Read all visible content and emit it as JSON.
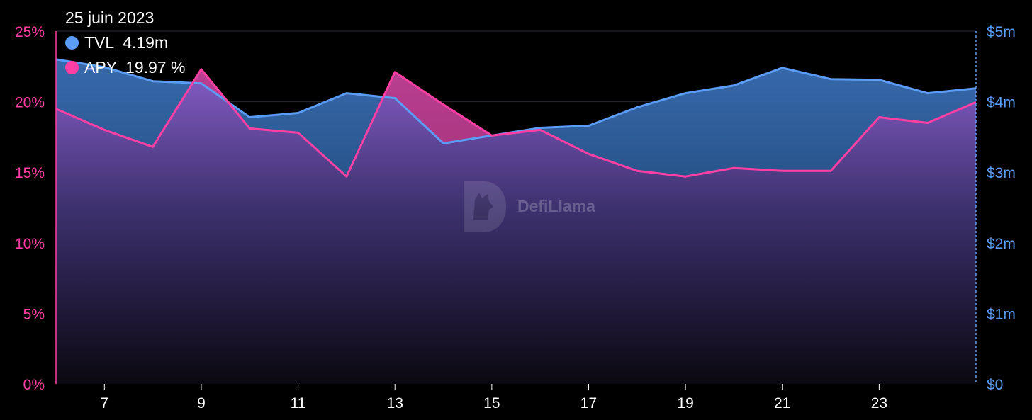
{
  "tooltip": {
    "date": "25 juin 2023",
    "tvl_label": "TVL",
    "tvl_value": "4.19m",
    "apy_label": "APY",
    "apy_value": "19.97 %"
  },
  "watermark": "DefiLlama",
  "colors": {
    "tvl": "#5b9cf6",
    "apy": "#ff3fa4",
    "background": "#000000",
    "grid": "#2a2a38"
  },
  "chart_data": {
    "type": "area",
    "x": [
      6,
      7,
      8,
      9,
      10,
      11,
      12,
      13,
      14,
      15,
      16,
      17,
      18,
      19,
      20,
      21,
      22,
      23,
      24,
      25
    ],
    "x_ticks": [
      "7",
      "9",
      "11",
      "13",
      "15",
      "17",
      "19",
      "21",
      "23"
    ],
    "x_tick_values": [
      7,
      9,
      11,
      13,
      15,
      17,
      19,
      21,
      23
    ],
    "series": [
      {
        "name": "TVL",
        "axis": "right",
        "values": [
          4.6,
          4.49,
          4.29,
          4.26,
          3.78,
          3.84,
          4.12,
          4.05,
          3.41,
          3.52,
          3.63,
          3.66,
          3.92,
          4.12,
          4.23,
          4.48,
          4.32,
          4.31,
          4.12,
          4.19
        ]
      },
      {
        "name": "APY",
        "axis": "left",
        "values": [
          19.5,
          18.0,
          16.8,
          22.3,
          18.1,
          17.8,
          14.7,
          22.1,
          19.8,
          17.6,
          18.0,
          16.3,
          15.1,
          14.7,
          15.3,
          15.1,
          15.1,
          18.9,
          18.5,
          19.97
        ]
      }
    ],
    "y_left": {
      "ticks": [
        "0%",
        "5%",
        "10%",
        "15%",
        "20%",
        "25%"
      ],
      "min": 0,
      "max": 25
    },
    "y_right": {
      "ticks": [
        "$0",
        "$1m",
        "$2m",
        "$3m",
        "$4m",
        "$5m"
      ],
      "min": 0,
      "max": 5
    },
    "grid": true,
    "legend": "top-left"
  }
}
